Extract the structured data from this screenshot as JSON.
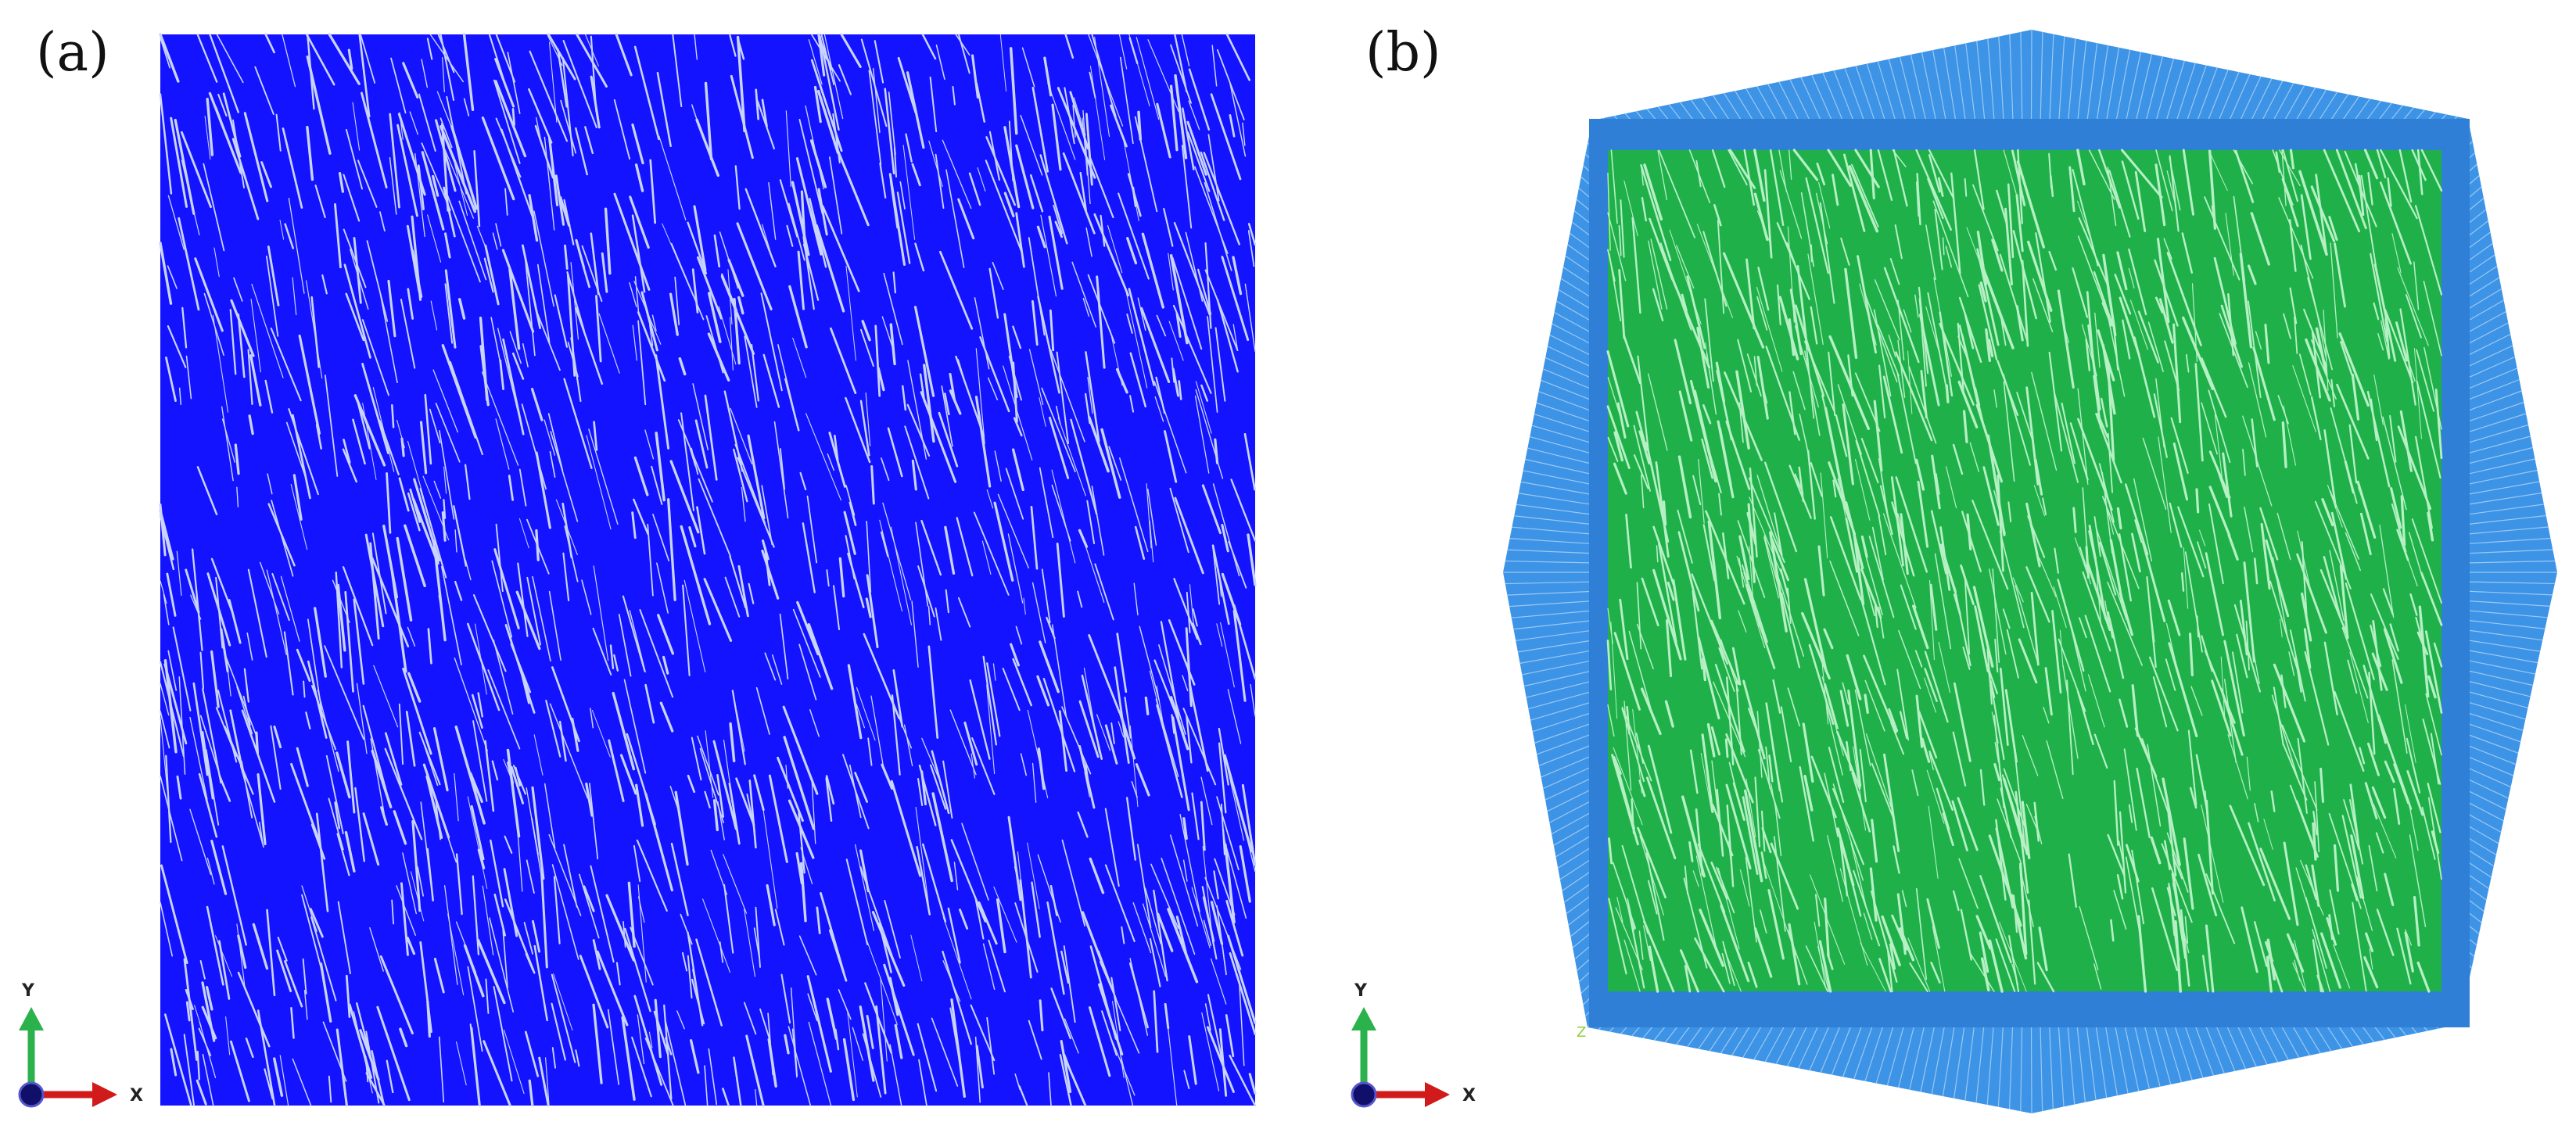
{
  "panel_a": {
    "label": "(a)",
    "fiber_color": "#1a1aff",
    "triad": {
      "y_label": "Y",
      "x_label": "X"
    }
  },
  "panel_b": {
    "label": "(b)",
    "fiber_color": "#22b24a",
    "outer_mesh_color": "#3b8fe0",
    "inner_border_color": "#2f7fd6",
    "triad": {
      "y_label": "Y",
      "x_label": "X"
    },
    "corner_mark": "Z"
  },
  "colors": {
    "axis_y": "#2bb24c",
    "axis_x": "#d11a1a",
    "origin": "#10106a"
  }
}
